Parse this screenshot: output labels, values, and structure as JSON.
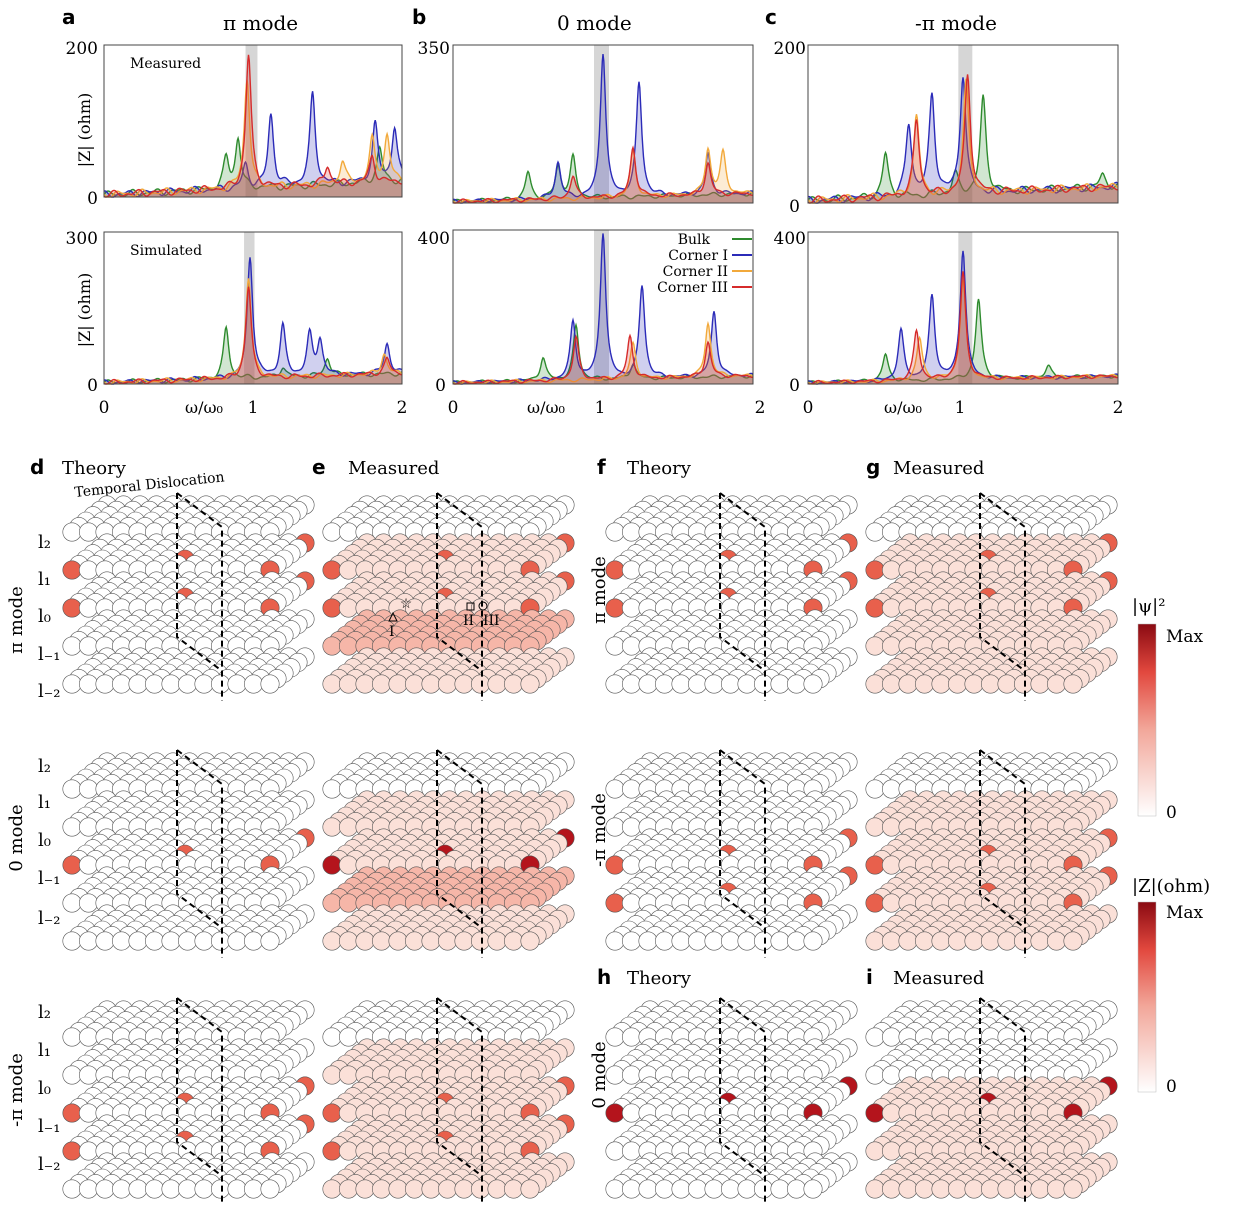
{
  "top_panels": [
    {
      "letter": "a",
      "title": "π mode",
      "rows": [
        {
          "caption": "Measured",
          "ymax": "200"
        },
        {
          "caption": "Simulated",
          "ymax": "300"
        }
      ]
    },
    {
      "letter": "b",
      "title": "0 mode",
      "rows": [
        {
          "caption": "",
          "ymax": "350"
        },
        {
          "caption": "",
          "ymax": "400"
        }
      ]
    },
    {
      "letter": "c",
      "title": "-π mode",
      "rows": [
        {
          "caption": "",
          "ymax": "200"
        },
        {
          "caption": "",
          "ymax": "400"
        }
      ]
    }
  ],
  "axis": {
    "ylabel": "|Z| (ohm)",
    "xlabel": "ω/ω₀",
    "y_zero": "0",
    "x_ticks": [
      "0",
      "1",
      "2"
    ]
  },
  "legend": [
    "Bulk",
    "Corner I",
    "Corner II",
    "Corner III"
  ],
  "series_colors": {
    "Bulk": "#2e8b2e",
    "Corner I": "#2b2bb8",
    "Corner II": "#f2a93b",
    "Corner III": "#d62b2b"
  },
  "lower_panels": [
    {
      "letter": "d",
      "title": "Theory",
      "annotation": "Temporal Dislocation"
    },
    {
      "letter": "e",
      "title": "Measured"
    },
    {
      "letter": "f",
      "title": "Theory"
    },
    {
      "letter": "g",
      "title": "Measured"
    },
    {
      "letter": "h",
      "title": "Theory"
    },
    {
      "letter": "i",
      "title": "Measured"
    }
  ],
  "mode_labels": {
    "pi": "π mode",
    "zero": "0 mode",
    "mpi": "-π mode"
  },
  "layer_labels": [
    "l₂",
    "l₁",
    "l₀",
    "l₋₁",
    "l₋₂"
  ],
  "markers": [
    "I",
    "II",
    "III"
  ],
  "colorbars": [
    {
      "label": "|ψ|²",
      "max": "Max",
      "min": "0"
    },
    {
      "label": "|Z|(ohm)",
      "max": "Max",
      "min": "0"
    }
  ],
  "chart_data": [
    {
      "type": "line",
      "panel": "a (Measured)",
      "title": "π mode",
      "xlabel": "ω/ω₀",
      "ylabel": "|Z| (ohm)",
      "xlim": [
        0,
        2
      ],
      "ylim": [
        0,
        200
      ],
      "highlight_band": [
        0.95,
        1.03
      ],
      "series": [
        {
          "name": "Bulk",
          "peaks": [
            [
              0.82,
              40
            ],
            [
              0.9,
              65
            ],
            [
              1.85,
              45
            ]
          ]
        },
        {
          "name": "Corner I",
          "peaks": [
            [
              0.95,
              30
            ],
            [
              1.12,
              95
            ],
            [
              1.4,
              120
            ],
            [
              1.82,
              75
            ],
            [
              1.95,
              70
            ]
          ]
        },
        {
          "name": "Corner II",
          "peaks": [
            [
              0.96,
              145
            ],
            [
              1.6,
              30
            ],
            [
              1.8,
              55
            ],
            [
              1.9,
              60
            ]
          ]
        },
        {
          "name": "Corner III",
          "peaks": [
            [
              0.97,
              175
            ],
            [
              1.5,
              25
            ],
            [
              1.8,
              35
            ]
          ]
        }
      ]
    },
    {
      "type": "line",
      "panel": "a (Simulated)",
      "xlim": [
        0,
        2
      ],
      "ylim": [
        0,
        300
      ],
      "highlight_band": [
        0.94,
        1.01
      ],
      "series": [
        {
          "name": "Bulk",
          "peaks": [
            [
              0.82,
              100
            ],
            [
              1.2,
              20
            ],
            [
              1.5,
              35
            ]
          ]
        },
        {
          "name": "Corner I",
          "peaks": [
            [
              0.98,
              240
            ],
            [
              1.2,
              100
            ],
            [
              1.38,
              80
            ],
            [
              1.45,
              70
            ],
            [
              1.9,
              60
            ]
          ]
        },
        {
          "name": "Corner II",
          "peaks": [
            [
              0.97,
              200
            ],
            [
              1.88,
              40
            ]
          ]
        },
        {
          "name": "Corner III",
          "peaks": [
            [
              0.97,
              180
            ],
            [
              1.9,
              30
            ]
          ]
        }
      ]
    },
    {
      "type": "line",
      "panel": "b (Measured)",
      "title": "0 mode",
      "xlim": [
        0,
        2
      ],
      "ylim": [
        0,
        350
      ],
      "highlight_band": [
        0.94,
        1.04
      ],
      "series": [
        {
          "name": "Bulk",
          "peaks": [
            [
              0.5,
              60
            ],
            [
              0.7,
              70
            ],
            [
              0.8,
              90
            ]
          ]
        },
        {
          "name": "Corner I",
          "peaks": [
            [
              0.7,
              80
            ],
            [
              1.0,
              320
            ],
            [
              1.24,
              250
            ],
            [
              1.7,
              90
            ]
          ]
        },
        {
          "name": "Corner II",
          "peaks": [
            [
              1.2,
              100
            ],
            [
              1.7,
              100
            ],
            [
              1.8,
              90
            ]
          ]
        },
        {
          "name": "Corner III",
          "peaks": [
            [
              0.8,
              50
            ],
            [
              1.2,
              110
            ],
            [
              1.7,
              70
            ]
          ]
        }
      ]
    },
    {
      "type": "line",
      "panel": "b (Simulated)",
      "xlim": [
        0,
        2
      ],
      "ylim": [
        0,
        400
      ],
      "highlight_band": [
        0.94,
        1.04
      ],
      "series": [
        {
          "name": "Bulk",
          "peaks": [
            [
              0.6,
              60
            ],
            [
              0.82,
              140
            ],
            [
              1.2,
              40
            ]
          ]
        },
        {
          "name": "Corner I",
          "peaks": [
            [
              0.8,
              150
            ],
            [
              1.0,
              380
            ],
            [
              1.26,
              240
            ],
            [
              1.74,
              170
            ]
          ]
        },
        {
          "name": "Corner II",
          "peaks": [
            [
              1.2,
              90
            ],
            [
              1.7,
              140
            ]
          ]
        },
        {
          "name": "Corner III",
          "peaks": [
            [
              0.82,
              110
            ],
            [
              1.18,
              110
            ],
            [
              1.7,
              90
            ]
          ]
        }
      ]
    },
    {
      "type": "line",
      "panel": "c (Measured)",
      "title": "-π mode",
      "xlim": [
        0,
        2
      ],
      "ylim": [
        0,
        200
      ],
      "highlight_band": [
        0.97,
        1.06
      ],
      "series": [
        {
          "name": "Bulk",
          "peaks": [
            [
              0.5,
              55
            ],
            [
              0.95,
              25
            ],
            [
              1.13,
              120
            ],
            [
              1.9,
              15
            ]
          ]
        },
        {
          "name": "Corner I",
          "peaks": [
            [
              0.65,
              90
            ],
            [
              0.8,
              125
            ],
            [
              1.0,
              150
            ]
          ]
        },
        {
          "name": "Corner II",
          "peaks": [
            [
              0.7,
              100
            ],
            [
              1.02,
              140
            ]
          ]
        },
        {
          "name": "Corner III",
          "peaks": [
            [
              0.7,
              95
            ],
            [
              1.03,
              150
            ]
          ]
        }
      ]
    },
    {
      "type": "line",
      "panel": "c (Simulated)",
      "xlim": [
        0,
        2
      ],
      "ylim": [
        0,
        400
      ],
      "highlight_band": [
        0.97,
        1.06
      ],
      "series": [
        {
          "name": "Bulk",
          "peaks": [
            [
              0.5,
              70
            ],
            [
              1.1,
              210
            ],
            [
              1.55,
              30
            ]
          ]
        },
        {
          "name": "Corner I",
          "peaks": [
            [
              0.6,
              130
            ],
            [
              0.8,
              220
            ],
            [
              1.0,
              340
            ]
          ]
        },
        {
          "name": "Corner II",
          "peaks": [
            [
              0.72,
              110
            ],
            [
              1.0,
              260
            ]
          ]
        },
        {
          "name": "Corner III",
          "peaks": [
            [
              0.7,
              130
            ],
            [
              1.0,
              280
            ]
          ]
        }
      ]
    }
  ]
}
